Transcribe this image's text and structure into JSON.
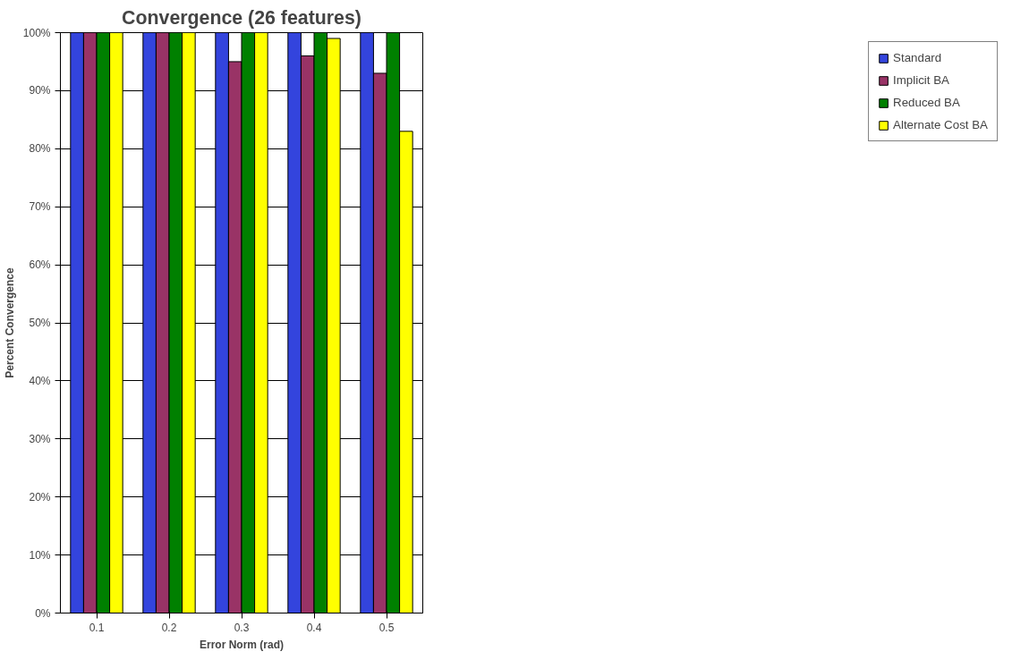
{
  "chart_data": {
    "type": "bar",
    "title": "Convergence (26 features)",
    "xlabel": "Error Norm (rad)",
    "ylabel": "Percent Convergence",
    "categories": [
      "0.1",
      "0.2",
      "0.3",
      "0.4",
      "0.5"
    ],
    "series": [
      {
        "name": "Standard",
        "color": "#3344dd",
        "values": [
          100,
          100,
          100,
          100,
          100
        ]
      },
      {
        "name": "Implicit BA",
        "color": "#993366",
        "values": [
          100,
          100,
          95,
          96,
          93
        ]
      },
      {
        "name": "Reduced BA",
        "color": "#008000",
        "values": [
          100,
          100,
          100,
          100,
          100
        ]
      },
      {
        "name": "Alternate Cost BA",
        "color": "#ffff00",
        "values": [
          100,
          100,
          100,
          99,
          83
        ]
      }
    ],
    "ylim": [
      0,
      100
    ],
    "yticks": [
      {
        "value": 0,
        "label": "0%"
      },
      {
        "value": 10,
        "label": "10%"
      },
      {
        "value": 20,
        "label": "20%"
      },
      {
        "value": 30,
        "label": "30%"
      },
      {
        "value": 40,
        "label": "40%"
      },
      {
        "value": 50,
        "label": "50%"
      },
      {
        "value": 60,
        "label": "60%"
      },
      {
        "value": 70,
        "label": "70%"
      },
      {
        "value": 80,
        "label": "80%"
      },
      {
        "value": 90,
        "label": "90%"
      },
      {
        "value": 100,
        "label": "100%"
      }
    ],
    "grid": "y",
    "legend": "right"
  }
}
